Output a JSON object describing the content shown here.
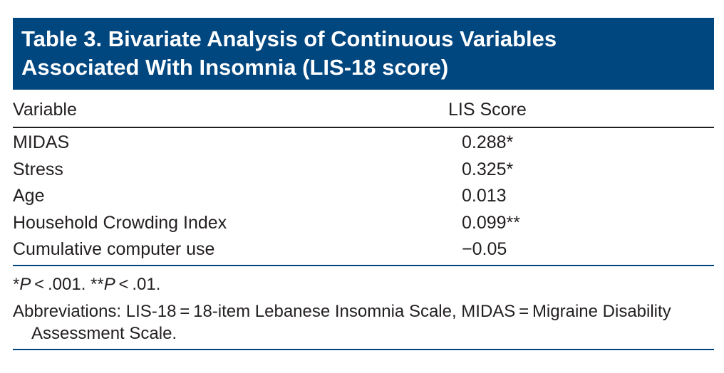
{
  "table": {
    "title_line1": "Table 3. Bivariate Analysis of Continuous Variables",
    "title_line2": "Associated With Insomnia (LIS-18 score)",
    "columns": {
      "variable": "Variable",
      "score": "LIS Score"
    },
    "rows": [
      {
        "variable": "MIDAS",
        "value": "0.288*"
      },
      {
        "variable": "Stress",
        "value": "0.325*"
      },
      {
        "variable": "Age",
        "value": "0.013"
      },
      {
        "variable": "Household Crowding Index",
        "value": "0.099**"
      },
      {
        "variable": "Cumulative computer use",
        "value": "−0.05"
      }
    ],
    "footnotes": {
      "sig_part1_prefix": "*",
      "sig_part1_p": "P",
      "sig_part1_rest": " < .001. **",
      "sig_part2_p": "P",
      "sig_part2_rest": " < .01.",
      "abbreviations": "Abbreviations: LIS-18 = 18-item Lebanese Insomnia Scale, MIDAS = Migraine Disability Assessment Scale."
    },
    "colors": {
      "title_background": "#00467f",
      "title_text": "#ffffff",
      "body_text": "#231f20"
    }
  }
}
